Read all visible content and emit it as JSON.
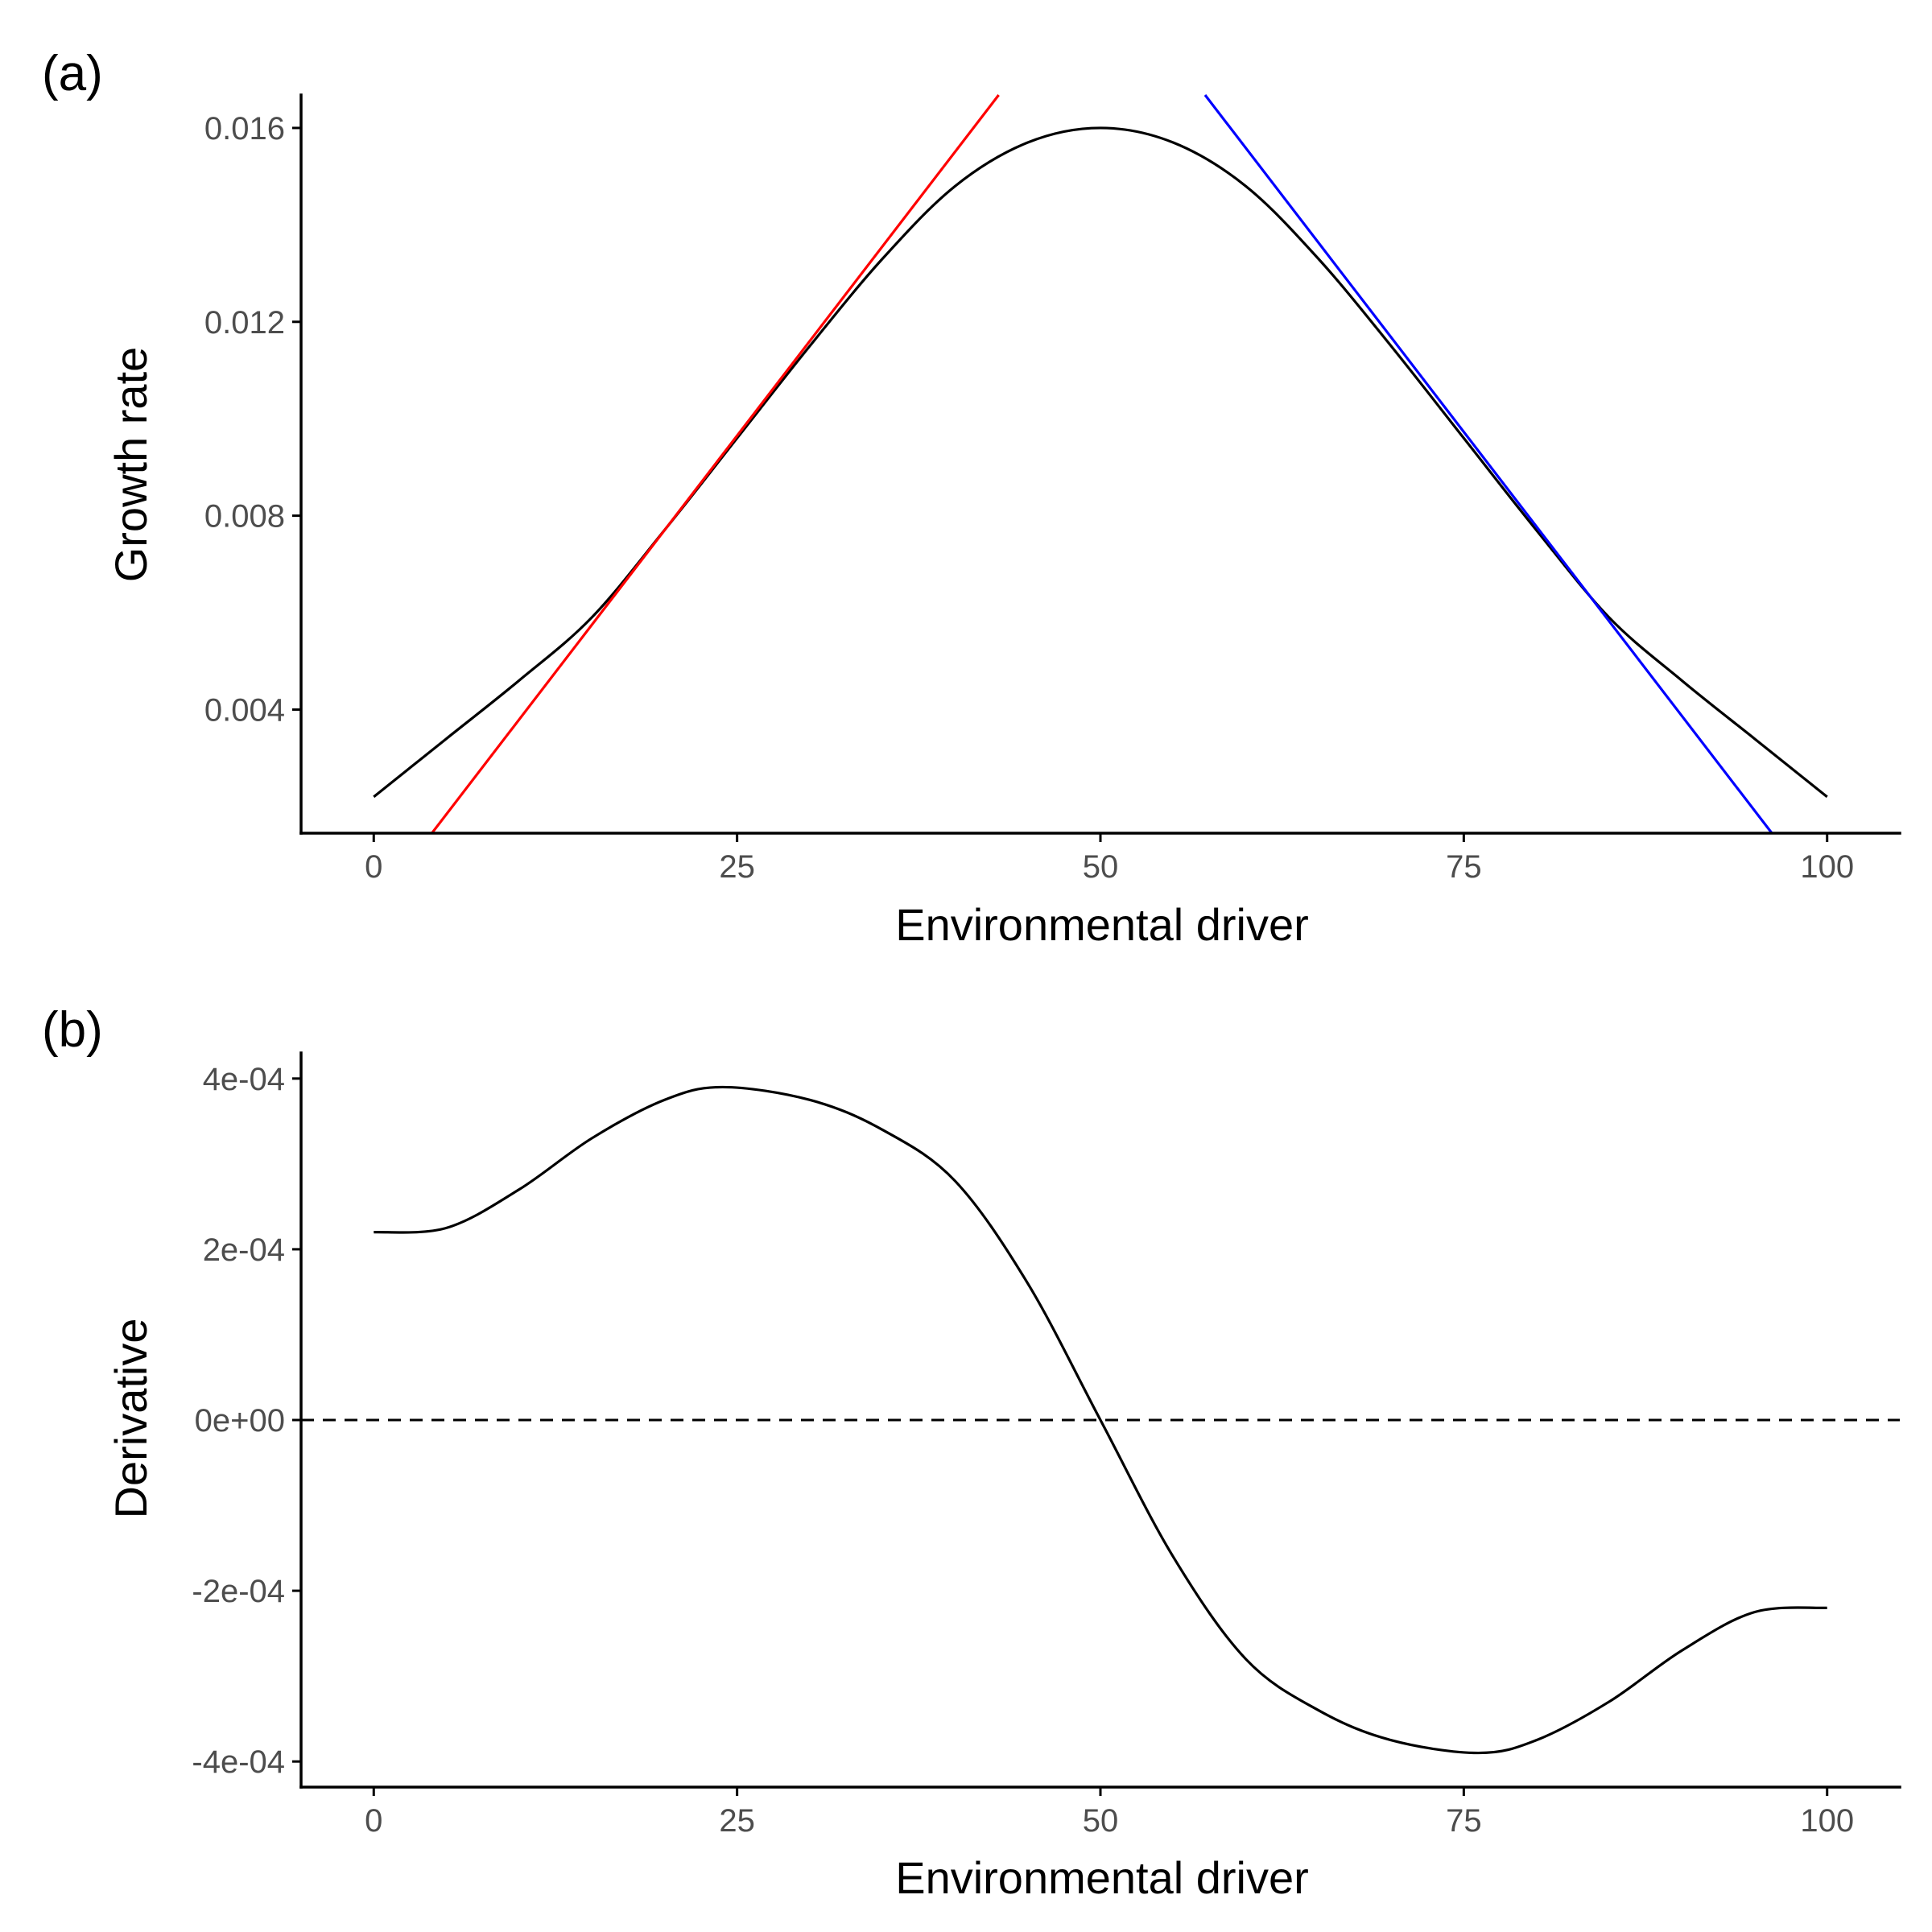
{
  "chart_data": [
    {
      "type": "line",
      "panel_label": "(a)",
      "title": "",
      "xlabel": "Environmental driver",
      "ylabel": "Growth rate",
      "xlim": [
        -5,
        105
      ],
      "ylim": [
        0.00145,
        0.01668
      ],
      "x_ticks": [
        0,
        25,
        50,
        75,
        100
      ],
      "x_tick_labels": [
        "0",
        "25",
        "50",
        "75",
        "100"
      ],
      "y_ticks": [
        0.004,
        0.008,
        0.012,
        0.016
      ],
      "y_tick_labels": [
        "0.004",
        "0.008",
        "0.012",
        "0.016"
      ],
      "grid": false,
      "series": [
        {
          "color": "#000000",
          "line": "solid",
          "x": [
            0,
            5,
            10,
            15,
            20,
            25,
            30,
            35,
            40,
            45,
            50,
            55,
            60,
            65,
            70,
            75,
            80,
            85,
            90,
            95,
            100
          ],
          "y": [
            0.0022,
            0.0034,
            0.0046,
            0.0059,
            0.0077,
            0.0096,
            0.0115,
            0.0133,
            0.0148,
            0.0157,
            0.016,
            0.0157,
            0.0148,
            0.0133,
            0.0115,
            0.0096,
            0.0077,
            0.0059,
            0.0046,
            0.0034,
            0.0022
          ]
        },
        {
          "color": "#ff0000",
          "line": "solid",
          "x": [
            4,
            43
          ],
          "y": [
            0.00145,
            0.01668
          ]
        },
        {
          "color": "#0000ff",
          "line": "solid",
          "x": [
            57.2,
            96.2
          ],
          "y": [
            0.01668,
            0.00145
          ]
        }
      ]
    },
    {
      "type": "line",
      "panel_label": "(b)",
      "title": "",
      "xlabel": "Environmental driver",
      "ylabel": "Derivative",
      "xlim": [
        -5,
        105
      ],
      "ylim": [
        -0.00043,
        0.00043
      ],
      "x_ticks": [
        0,
        25,
        50,
        75,
        100
      ],
      "x_tick_labels": [
        "0",
        "25",
        "50",
        "75",
        "100"
      ],
      "y_ticks": [
        -0.0004,
        -0.0002,
        0,
        0.0002,
        0.0004
      ],
      "y_tick_labels": [
        "-4e-04",
        "-2e-04",
        "0e+00",
        "2e-04",
        "4e-04"
      ],
      "grid": false,
      "reference_line": {
        "y": 0,
        "color": "#000000",
        "line": "dashed"
      },
      "series": [
        {
          "color": "#000000",
          "line": "solid",
          "x": [
            0,
            5,
            10,
            15,
            20,
            24,
            30,
            35,
            40,
            45,
            50,
            55,
            60,
            65,
            70,
            76,
            80,
            85,
            90,
            95,
            100
          ],
          "y": [
            0.00022,
            0.000225,
            0.00027,
            0.00033,
            0.000375,
            0.00039,
            0.000375,
            0.00034,
            0.00028,
            0.00016,
            0.0,
            -0.00016,
            -0.00028,
            -0.00034,
            -0.000375,
            -0.00039,
            -0.000375,
            -0.00033,
            -0.00027,
            -0.000225,
            -0.00022
          ]
        }
      ]
    }
  ]
}
